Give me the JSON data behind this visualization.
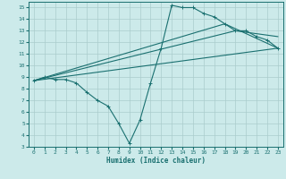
{
  "background_color": "#cceaea",
  "grid_color": "#aacccc",
  "line_color": "#1a7070",
  "xlabel": "Humidex (Indice chaleur)",
  "xlim": [
    -0.5,
    23.5
  ],
  "ylim": [
    3,
    15.5
  ],
  "xticks": [
    0,
    1,
    2,
    3,
    4,
    5,
    6,
    7,
    8,
    9,
    10,
    11,
    12,
    13,
    14,
    15,
    16,
    17,
    18,
    19,
    20,
    21,
    22,
    23
  ],
  "yticks": [
    3,
    4,
    5,
    6,
    7,
    8,
    9,
    10,
    11,
    12,
    13,
    14,
    15
  ],
  "series0": {
    "x": [
      0,
      1,
      2,
      3,
      4,
      5,
      6,
      7,
      8,
      9,
      10,
      11,
      12,
      13,
      14,
      15,
      16,
      17,
      18,
      19,
      20,
      21,
      22,
      23
    ],
    "y": [
      8.7,
      9.0,
      8.8,
      8.8,
      8.5,
      7.7,
      7.0,
      6.5,
      5.0,
      3.3,
      5.3,
      8.5,
      11.5,
      15.2,
      15.0,
      15.0,
      14.5,
      14.2,
      13.6,
      13.0,
      13.0,
      12.5,
      12.2,
      11.5
    ]
  },
  "line1": {
    "x": [
      0,
      23
    ],
    "y": [
      8.7,
      11.5
    ]
  },
  "line2": {
    "x": [
      0,
      19,
      23
    ],
    "y": [
      8.7,
      13.0,
      12.5
    ]
  },
  "line3": {
    "x": [
      0,
      18,
      23
    ],
    "y": [
      8.7,
      13.6,
      11.5
    ]
  }
}
